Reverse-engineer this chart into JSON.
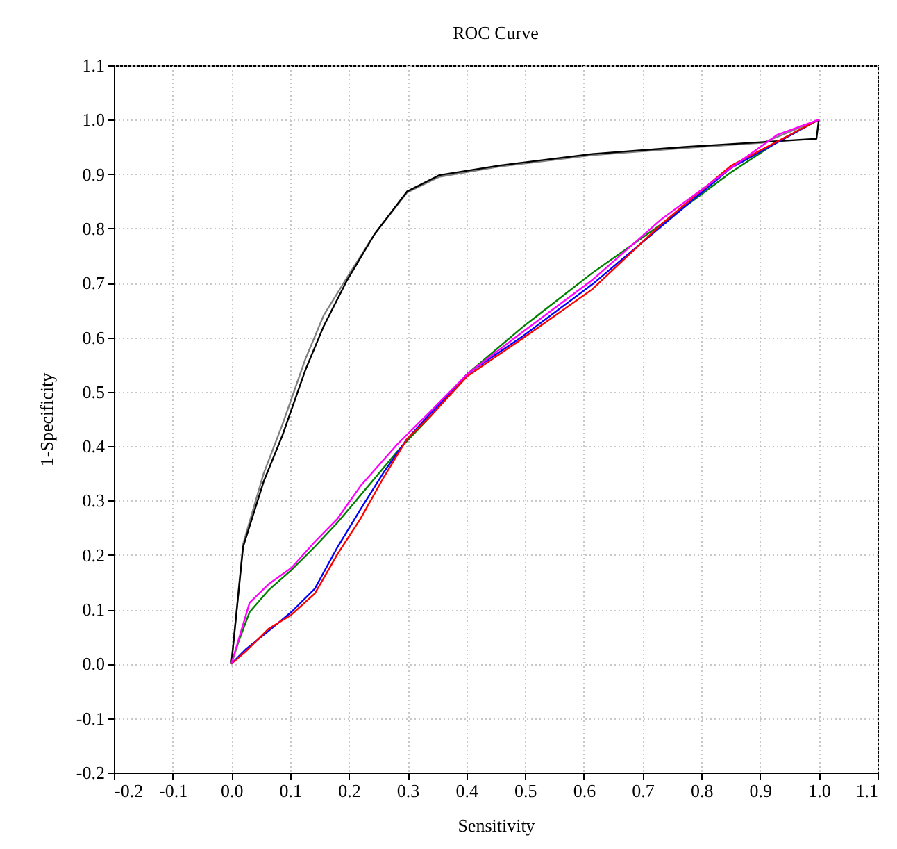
{
  "chart_data": {
    "type": "line",
    "title": "ROC Curve",
    "xlabel": "Sensitivity",
    "ylabel": "1-Specificity",
    "xlim": [
      -0.2,
      1.1
    ],
    "ylim": [
      -0.2,
      1.1
    ],
    "xticks": [
      {
        "value": -0.2,
        "label": "-0.2"
      },
      {
        "value": -0.1,
        "label": "-0.1"
      },
      {
        "value": 0,
        "label": "0.0"
      },
      {
        "value": 0.1,
        "label": "0.1"
      },
      {
        "value": 0.2,
        "label": "0.2"
      },
      {
        "value": 0.3,
        "label": "0.3"
      },
      {
        "value": 0.4,
        "label": "0.4"
      },
      {
        "value": 0.5,
        "label": "0.5"
      },
      {
        "value": 0.6,
        "label": "0.6"
      },
      {
        "value": 0.7,
        "label": "0.7"
      },
      {
        "value": 0.8,
        "label": "0.8"
      },
      {
        "value": 0.9,
        "label": "0.9"
      },
      {
        "value": 1,
        "label": "1.0"
      },
      {
        "value": 1.1,
        "label": "1.1"
      }
    ],
    "yticks": [
      {
        "value": -0.2,
        "label": "-0.2"
      },
      {
        "value": -0.1,
        "label": "-0.1"
      },
      {
        "value": 0,
        "label": "0.0"
      },
      {
        "value": 0.1,
        "label": "0.1"
      },
      {
        "value": 0.2,
        "label": "0.2"
      },
      {
        "value": 0.3,
        "label": "0.3"
      },
      {
        "value": 0.4,
        "label": "0.4"
      },
      {
        "value": 0.5,
        "label": "0.5"
      },
      {
        "value": 0.6,
        "label": "0.6"
      },
      {
        "value": 0.7,
        "label": "0.7"
      },
      {
        "value": 0.8,
        "label": "0.8"
      },
      {
        "value": 0.9,
        "label": "0.9"
      },
      {
        "value": 1,
        "label": "1.0"
      },
      {
        "value": 1.1,
        "label": "1.1"
      }
    ],
    "grid": true,
    "legend": false,
    "marker": "none",
    "line_style": "solid",
    "series": [
      {
        "color": "#808080",
        "x": [
          0,
          0.02,
          0.055,
          0.087,
          0.126,
          0.157,
          0.197,
          0.244,
          0.299,
          0.354,
          0.457,
          0.614,
          0.772,
          0.906,
          1
        ],
        "values": [
          0,
          0.22,
          0.35,
          0.44,
          0.56,
          0.64,
          0.71,
          0.79,
          0.866,
          0.895,
          0.914,
          0.935,
          0.948,
          0.958,
          1
        ]
      },
      {
        "color": "#000000",
        "x": [
          0,
          0.02,
          0.055,
          0.087,
          0.126,
          0.157,
          0.197,
          0.244,
          0.299,
          0.354,
          0.457,
          0.614,
          0.772,
          0.906,
          0.996,
          1
        ],
        "values": [
          0,
          0.215,
          0.335,
          0.42,
          0.54,
          0.62,
          0.705,
          0.79,
          0.868,
          0.898,
          0.916,
          0.937,
          0.95,
          0.959,
          0.965,
          1
        ]
      },
      {
        "color": "#008000",
        "x": [
          0,
          0.012,
          0.031,
          0.063,
          0.102,
          0.142,
          0.181,
          0.22,
          0.283,
          0.339,
          0.402,
          0.496,
          0.614,
          0.732,
          0.85,
          0.929,
          1
        ],
        "values": [
          0,
          0.04,
          0.095,
          0.135,
          0.172,
          0.215,
          0.26,
          0.31,
          0.391,
          0.455,
          0.533,
          0.619,
          0.718,
          0.808,
          0.903,
          0.959,
          1
        ]
      },
      {
        "color": "#0000ff",
        "x": [
          0,
          0.024,
          0.063,
          0.102,
          0.142,
          0.181,
          0.22,
          0.26,
          0.299,
          0.339,
          0.402,
          0.496,
          0.614,
          0.732,
          0.85,
          1
        ],
        "values": [
          0,
          0.026,
          0.06,
          0.095,
          0.138,
          0.215,
          0.284,
          0.353,
          0.413,
          0.46,
          0.533,
          0.602,
          0.697,
          0.804,
          0.911,
          1
        ]
      },
      {
        "color": "#ff0000",
        "x": [
          0,
          0.024,
          0.063,
          0.102,
          0.142,
          0.181,
          0.22,
          0.26,
          0.299,
          0.339,
          0.402,
          0.496,
          0.614,
          0.732,
          0.85,
          1
        ],
        "values": [
          0,
          0.022,
          0.064,
          0.09,
          0.129,
          0.202,
          0.267,
          0.344,
          0.413,
          0.455,
          0.529,
          0.598,
          0.688,
          0.808,
          0.915,
          1
        ]
      },
      {
        "color": "#ff00ff",
        "x": [
          0,
          0.012,
          0.031,
          0.063,
          0.102,
          0.142,
          0.181,
          0.22,
          0.283,
          0.339,
          0.402,
          0.496,
          0.614,
          0.732,
          0.85,
          0.929,
          1
        ],
        "values": [
          0,
          0.043,
          0.112,
          0.146,
          0.176,
          0.224,
          0.267,
          0.327,
          0.404,
          0.464,
          0.533,
          0.61,
          0.705,
          0.817,
          0.911,
          0.972,
          1
        ]
      }
    ]
  }
}
